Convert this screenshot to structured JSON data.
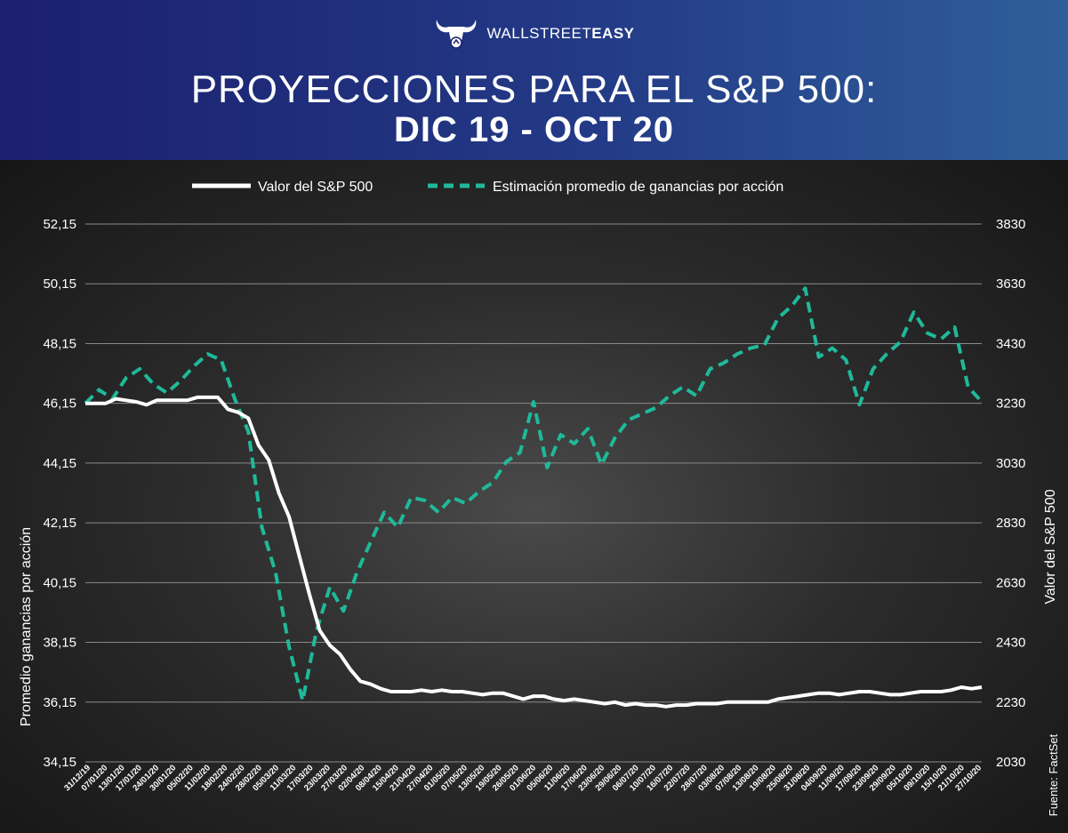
{
  "header": {
    "brand_name_light": "WALLSTREET",
    "brand_name_bold": "EASY",
    "title_line1": "PROYECCIONES PARA EL S&P 500:",
    "title_line2": "DIC 19 - OCT 20"
  },
  "colors": {
    "sp500_line": "#ffffff",
    "eps_line": "#1fb99a",
    "header_gradient_start": "#1b1f6e",
    "header_gradient_end": "#2f5e9a",
    "background": "#1f1f1f"
  },
  "source": "Fuente: FactSet",
  "chart_data": {
    "type": "line",
    "title": "PROYECCIONES PARA EL S&P 500: DIC 19 - OCT 20",
    "ylabel_left": "Promedio ganancias por acción",
    "ylabel_right": "Valor del S&P 500",
    "y_left_ticks": [
      "52,15",
      "50,15",
      "48,15",
      "46,15",
      "44,15",
      "42,15",
      "40,15",
      "38,15",
      "36,15",
      "34,15"
    ],
    "y_left_range": [
      34.15,
      52.15
    ],
    "y_right_ticks": [
      "3830",
      "3630",
      "3430",
      "3230",
      "3030",
      "2830",
      "2630",
      "2430",
      "2230",
      "2030"
    ],
    "y_right_range": [
      2030,
      3830
    ],
    "grid": true,
    "legend_position": "top",
    "x_tick_labels": [
      "31/12/19",
      "07/01/20",
      "13/01/20",
      "17/01/20",
      "24/01/20",
      "30/01/20",
      "05/02/20",
      "11/02/20",
      "18/02/20",
      "24/02/20",
      "28/02/20",
      "05/03/20",
      "11/03/20",
      "17/03/20",
      "23/03/20",
      "27/03/20",
      "02/04/20",
      "08/04/20",
      "15/04/20",
      "21/04/20",
      "27/04/20",
      "01/05/20",
      "07/05/20",
      "13/05/20",
      "19/05/20",
      "26/05/20",
      "01/06/20",
      "05/06/20",
      "11/06/20",
      "17/06/20",
      "23/06/20",
      "29/06/20",
      "06/07/20",
      "10/07/20",
      "16/07/20",
      "22/07/20",
      "28/07/20",
      "03/08/20",
      "07/08/20",
      "13/08/20",
      "19/08/20",
      "25/08/20",
      "31/08/20",
      "04/09/20",
      "11/09/20",
      "17/09/20",
      "23/09/20",
      "29/09/20",
      "05/10/20",
      "09/10/20",
      "15/10/20",
      "21/10/20",
      "27/10/20"
    ],
    "series": [
      {
        "name": "Valor del S&P 500",
        "axis": "right",
        "style": "solid",
        "values": [
          3230,
          3230,
          3230,
          3245,
          3240,
          3235,
          3225,
          3240,
          3240,
          3240,
          3240,
          3250,
          3250,
          3250,
          3210,
          3200,
          3180,
          3090,
          3040,
          2930,
          2850,
          2720,
          2590,
          2470,
          2420,
          2390,
          2340,
          2300,
          2290,
          2275,
          2265,
          2265,
          2265,
          2270,
          2265,
          2270,
          2265,
          2265,
          2260,
          2255,
          2260,
          2260,
          2250,
          2240,
          2250,
          2250,
          2240,
          2235,
          2240,
          2235,
          2230,
          2225,
          2230,
          2220,
          2225,
          2220,
          2220,
          2215,
          2220,
          2220,
          2225,
          2225,
          2225,
          2230,
          2230,
          2230,
          2230,
          2230,
          2240,
          2245,
          2250,
          2255,
          2260,
          2260,
          2255,
          2260,
          2265,
          2265,
          2260,
          2255,
          2255,
          2260,
          2265,
          2265,
          2265,
          2270,
          2280,
          2275,
          2280
        ]
      },
      {
        "name": "Estimación promedio de ganancias por acción",
        "axis": "left",
        "style": "dashed",
        "values": [
          46.15,
          46.6,
          46.3,
          47.0,
          47.3,
          46.8,
          46.5,
          46.9,
          47.4,
          47.8,
          47.6,
          46.3,
          45.2,
          42.0,
          40.5,
          38.0,
          36.2,
          38.5,
          40.0,
          39.2,
          40.5,
          41.5,
          42.5,
          42.0,
          43.0,
          42.9,
          42.5,
          43.0,
          42.8,
          43.2,
          43.5,
          44.2,
          44.5,
          46.2,
          44.0,
          45.1,
          44.8,
          45.3,
          44.1,
          45.0,
          45.6,
          45.8,
          46.0,
          46.4,
          46.7,
          46.4,
          47.3,
          47.5,
          47.8,
          48.0,
          48.1,
          49.0,
          49.4,
          50.0,
          47.7,
          48.0,
          47.6,
          46.1,
          47.3,
          47.8,
          48.2,
          49.2,
          48.5,
          48.3,
          48.7,
          46.7,
          46.2
        ]
      }
    ]
  }
}
